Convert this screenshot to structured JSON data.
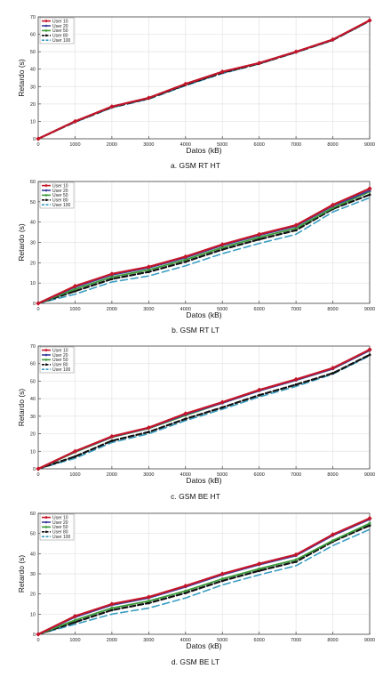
{
  "chart_data": [
    {
      "type": "line",
      "title": "",
      "caption": "a. GSM RT HT",
      "xlabel": "Datos (kB)",
      "ylabel": "Retardo (s)",
      "xlim": [
        0,
        9000
      ],
      "ylim": [
        0,
        70
      ],
      "x": [
        0,
        1000,
        2000,
        3000,
        4000,
        5000,
        6000,
        7000,
        8000,
        9000
      ],
      "xticks": [
        "0",
        "1000",
        "2000",
        "3000",
        "4000",
        "5000",
        "6000",
        "7000",
        "8000",
        "9000"
      ],
      "yticks": [
        "0",
        "10",
        "20",
        "30",
        "40",
        "50",
        "60",
        "70"
      ],
      "grid": true,
      "legend_position": "top-left",
      "series": [
        {
          "name": "User 10",
          "values": [
            0,
            10,
            18.5,
            23.5,
            31.5,
            38.5,
            43.5,
            50,
            57,
            68
          ]
        },
        {
          "name": "User 20",
          "values": [
            0,
            10,
            18.5,
            23.5,
            31.5,
            38.5,
            43.5,
            50,
            57,
            68
          ]
        },
        {
          "name": "User 50",
          "values": [
            0,
            10,
            18.5,
            23.5,
            31.5,
            38.5,
            43.5,
            50,
            57,
            68
          ]
        },
        {
          "name": "User 80",
          "values": [
            0,
            9.8,
            18.2,
            23.2,
            31,
            38,
            43.2,
            49.8,
            56.8,
            67.8
          ]
        },
        {
          "name": "User 100",
          "values": [
            0,
            9.5,
            17.8,
            22.8,
            30.5,
            37.5,
            43,
            49.5,
            56.5,
            67.5
          ]
        }
      ]
    },
    {
      "type": "line",
      "title": "",
      "caption": "b. GSM RT LT",
      "xlabel": "Datos (kB)",
      "ylabel": "Retardo (s)",
      "xlim": [
        0,
        9000
      ],
      "ylim": [
        0,
        60
      ],
      "x": [
        0,
        1000,
        2000,
        3000,
        4000,
        5000,
        6000,
        7000,
        8000,
        9000
      ],
      "xticks": [
        "0",
        "1000",
        "2000",
        "3000",
        "4000",
        "5000",
        "6000",
        "7000",
        "8000",
        "9000"
      ],
      "yticks": [
        "0",
        "10",
        "20",
        "30",
        "40",
        "50",
        "60"
      ],
      "grid": true,
      "legend_position": "top-left",
      "series": [
        {
          "name": "User 10",
          "values": [
            0,
            8.5,
            14.5,
            18,
            23,
            29,
            34,
            38.5,
            48.5,
            56.5
          ]
        },
        {
          "name": "User 20",
          "values": [
            0,
            8,
            14,
            17.5,
            22.5,
            28.5,
            33.5,
            38,
            48,
            55.5
          ]
        },
        {
          "name": "User 50",
          "values": [
            0,
            7,
            13,
            16.5,
            21.5,
            27.5,
            32.5,
            37,
            47,
            55
          ]
        },
        {
          "name": "User 80",
          "values": [
            0,
            6,
            12,
            15.5,
            20.5,
            26.5,
            31.5,
            36,
            46.5,
            53.5
          ]
        },
        {
          "name": "User 100",
          "values": [
            0,
            4.5,
            10.5,
            13.5,
            18.5,
            24.5,
            29.5,
            34,
            45,
            52
          ]
        }
      ]
    },
    {
      "type": "line",
      "title": "",
      "caption": "c. GSM BE HT",
      "xlabel": "Datos (kB)",
      "ylabel": "Retardo (s)",
      "xlim": [
        0,
        9000
      ],
      "ylim": [
        0,
        70
      ],
      "x": [
        0,
        1000,
        2000,
        3000,
        4000,
        5000,
        6000,
        7000,
        8000,
        9000
      ],
      "xticks": [
        "0",
        "1000",
        "2000",
        "3000",
        "4000",
        "5000",
        "6000",
        "7000",
        "8000",
        "9000"
      ],
      "yticks": [
        "0",
        "10",
        "20",
        "30",
        "40",
        "50",
        "60",
        "70"
      ],
      "grid": true,
      "legend_position": "top-left",
      "series": [
        {
          "name": "User 10",
          "values": [
            0,
            10,
            18.5,
            23.5,
            31.5,
            38,
            45,
            51,
            57.5,
            68
          ]
        },
        {
          "name": "User 20",
          "values": [
            0,
            9.8,
            18.2,
            23.2,
            31,
            37.5,
            44.5,
            50.5,
            57,
            67.5
          ]
        },
        {
          "name": "User 50",
          "values": [
            0,
            9.5,
            18,
            23,
            30.5,
            37.5,
            44.5,
            50.5,
            57,
            67.5
          ]
        },
        {
          "name": "User 80",
          "values": [
            0,
            7,
            16,
            21,
            28.5,
            35,
            42,
            48,
            54.5,
            65
          ]
        },
        {
          "name": "User 100",
          "values": [
            0,
            6,
            15,
            20,
            27.5,
            34,
            41,
            47,
            54,
            64.5
          ]
        }
      ]
    },
    {
      "type": "line",
      "title": "",
      "caption": "d. GSM BE LT",
      "xlabel": "Datos (kB)",
      "ylabel": "Retardo (s)",
      "xlim": [
        0,
        9000
      ],
      "ylim": [
        0,
        60
      ],
      "x": [
        0,
        1000,
        2000,
        3000,
        4000,
        5000,
        6000,
        7000,
        8000,
        9000
      ],
      "xticks": [
        "0",
        "1000",
        "2000",
        "3000",
        "4000",
        "5000",
        "6000",
        "7000",
        "8000",
        "9000"
      ],
      "yticks": [
        "0",
        "10",
        "20",
        "30",
        "40",
        "50",
        "60"
      ],
      "grid": true,
      "legend_position": "top-left",
      "series": [
        {
          "name": "User 10",
          "values": [
            0,
            9,
            15,
            18.5,
            24,
            30,
            35,
            39.5,
            49.5,
            57.5
          ]
        },
        {
          "name": "User 20",
          "values": [
            0,
            8.5,
            14.5,
            18,
            23.5,
            29.5,
            34.5,
            39,
            49,
            57
          ]
        },
        {
          "name": "User 50",
          "values": [
            0,
            7,
            13,
            16.5,
            21.5,
            27.5,
            32.5,
            37,
            46.5,
            55
          ]
        },
        {
          "name": "User 80",
          "values": [
            0,
            6,
            12,
            15.5,
            20.5,
            26.5,
            31.5,
            36,
            46,
            54
          ]
        },
        {
          "name": "User 100",
          "values": [
            0,
            5,
            10,
            13,
            18,
            24.5,
            29.5,
            34,
            44,
            52
          ]
        }
      ]
    }
  ],
  "series_style": [
    {
      "color": "#c4162a",
      "dash": "",
      "marker": "diamond",
      "width": 2.2
    },
    {
      "color": "#3b3f9e",
      "dash": "",
      "marker": "circle",
      "width": 1.8
    },
    {
      "color": "#3a9a3a",
      "dash": "",
      "marker": "circle",
      "width": 1.8
    },
    {
      "color": "#111111",
      "dash": "6,3",
      "marker": "circle",
      "width": 2.2
    },
    {
      "color": "#3a9ec0",
      "dash": "8,4",
      "marker": "none",
      "width": 1.6
    }
  ]
}
